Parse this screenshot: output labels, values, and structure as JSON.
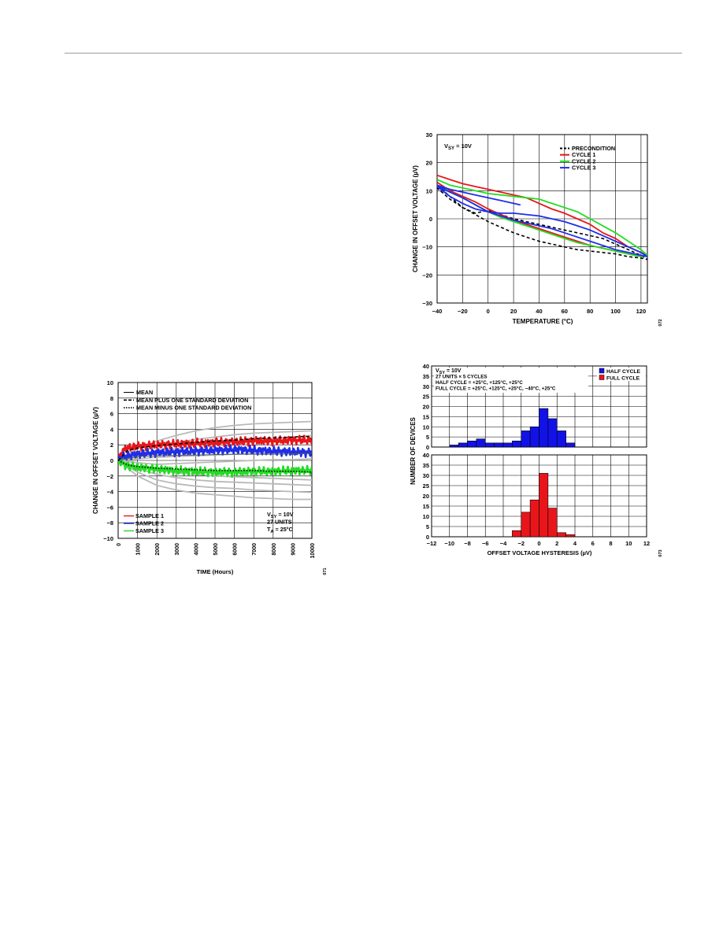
{
  "chart_data": [
    {
      "type": "line",
      "xlabel": "TEMPERATURE (°C)",
      "ylabel": "CHANGE IN OFFSET VOLTAGE (µV)",
      "xlim": [
        -40,
        125
      ],
      "ylim": [
        -30,
        30
      ],
      "xticks": [
        "−40",
        "−20",
        "0",
        "20",
        "40",
        "60",
        "80",
        "100",
        "120"
      ],
      "yticks": [
        "30",
        "20",
        "10",
        "0",
        "−10",
        "−20",
        "−30"
      ],
      "annotation": "V_SY = 10V",
      "figure_id": "072",
      "grid": true,
      "legend_position": "top-right",
      "series": [
        {
          "name": "PRECONDITION",
          "color": "#000000",
          "dash": true,
          "x": [
            -40,
            -30,
            -20,
            -10,
            0,
            10,
            20,
            30,
            40,
            50,
            60,
            70,
            80,
            90,
            100,
            110,
            120,
            125,
            120,
            110,
            100,
            90,
            80,
            70,
            60,
            50,
            40,
            30,
            20,
            10,
            0,
            -10,
            -20,
            -30,
            -40
          ],
          "y": [
            12,
            8,
            4,
            1.5,
            -1,
            -3,
            -5,
            -6.5,
            -8,
            -9,
            -10,
            -11,
            -11.5,
            -12,
            -12.5,
            -13.5,
            -14,
            -14.5,
            -13,
            -11,
            -9,
            -7,
            -6,
            -5,
            -4,
            -3,
            -2,
            -1,
            0,
            1.5,
            3,
            2,
            4,
            7,
            11
          ]
        },
        {
          "name": "CYCLE 1",
          "color": "#e8161b",
          "dash": false,
          "x": [
            -40,
            -30,
            -20,
            -10,
            0,
            10,
            20,
            25,
            30,
            40,
            50,
            60,
            70,
            80,
            90,
            100,
            110,
            120,
            125,
            120,
            110,
            100,
            90,
            80,
            70,
            60,
            50,
            40,
            30,
            20,
            10,
            0,
            -10,
            -20,
            -30,
            -40
          ],
          "y": [
            15.5,
            14,
            12.5,
            11.5,
            10.5,
            9.5,
            8.5,
            8,
            7.5,
            5.5,
            3.5,
            2,
            0,
            -2,
            -5,
            -7,
            -10,
            -12,
            -13,
            -13.5,
            -12.5,
            -11.5,
            -10.5,
            -9.5,
            -8,
            -6.5,
            -5,
            -3.5,
            -2,
            -0.5,
            1.5,
            3.5,
            6,
            8,
            10,
            13
          ]
        },
        {
          "name": "CYCLE 2",
          "color": "#22dd22",
          "dash": false,
          "x": [
            -40,
            -30,
            -20,
            -10,
            0,
            10,
            20,
            30,
            40,
            50,
            60,
            70,
            80,
            90,
            100,
            110,
            120,
            125,
            120,
            110,
            100,
            90,
            80,
            70,
            60,
            50,
            40,
            30,
            20,
            10,
            0,
            -10,
            -20,
            -30,
            -40
          ],
          "y": [
            14,
            12,
            11,
            10,
            9,
            8.5,
            8,
            7.5,
            7,
            5.5,
            4,
            2.5,
            0,
            -2.5,
            -5,
            -8,
            -11,
            -13,
            -13.5,
            -12.5,
            -11.5,
            -10.5,
            -9.5,
            -8.5,
            -7,
            -5.5,
            -4,
            -2.5,
            -1,
            0.5,
            2.5,
            5,
            7.5,
            9.5,
            12
          ]
        },
        {
          "name": "CYCLE 3",
          "color": "#1f2ee8",
          "dash": false,
          "x": [
            -40,
            -30,
            -20,
            -10,
            0,
            10,
            20,
            25,
            20,
            10,
            0,
            -10,
            -20,
            -30,
            -40,
            -30,
            -20,
            -10,
            0,
            10,
            20,
            30,
            40,
            50,
            60,
            70,
            80,
            90,
            100,
            110,
            120,
            125,
            120,
            110,
            100,
            90,
            80,
            70,
            60,
            50,
            40,
            30,
            20,
            10,
            0,
            -10,
            -20,
            -30,
            -40
          ],
          "y": [
            12,
            10.5,
            9.5,
            8.5,
            7.5,
            6.5,
            5.5,
            5,
            5.5,
            6.5,
            7.5,
            8.5,
            9.5,
            10.5,
            11.5,
            9.5,
            7.5,
            5,
            2.5,
            1,
            -0.5,
            -1.5,
            -2.5,
            -3.5,
            -5,
            -6.5,
            -8,
            -9.5,
            -11,
            -12,
            -13,
            -13.5,
            -12,
            -10,
            -8,
            -6,
            -4,
            -2.5,
            -1,
            0,
            1,
            1.5,
            2,
            2,
            2.5,
            3.5,
            5.5,
            8,
            11.5
          ]
        }
      ]
    },
    {
      "type": "line",
      "xlabel": "TIME (Hours)",
      "ylabel": "CHANGE IN OFFSET VOLTAGE (µV)",
      "xlim": [
        0,
        10000
      ],
      "ylim": [
        -10,
        10
      ],
      "xticks": [
        "0",
        "1000",
        "2000",
        "3000",
        "4000",
        "5000",
        "6000",
        "7000",
        "8000",
        "9000",
        "10000"
      ],
      "yticks": [
        "10",
        "8",
        "6",
        "4",
        "2",
        "0",
        "−2",
        "−4",
        "−6",
        "−8",
        "−10"
      ],
      "annotation_lines": [
        "V_SY = 10V",
        "27 UNITS",
        "T_A = 25°C"
      ],
      "figure_id": "071",
      "grid": true,
      "legend_top": [
        "MEAN",
        "MEAN PLUS ONE STANDARD DEVIATION",
        "MEAN MINUS ONE STANDARD DEVIATION"
      ],
      "legend_bottom": [
        "SAMPLE 1",
        "SAMPLE 2",
        "SAMPLE 3"
      ],
      "series": [
        {
          "name": "SAMPLE 1",
          "color": "#e8161b",
          "x": [
            0,
            200,
            500,
            1000,
            2000,
            3000,
            4000,
            5000,
            6000,
            7000,
            8000,
            9000,
            10000
          ],
          "y": [
            0,
            1.2,
            1.6,
            1.8,
            2.0,
            2.1,
            2.2,
            2.3,
            2.4,
            2.5,
            2.5,
            2.6,
            2.6
          ]
        },
        {
          "name": "SAMPLE 2",
          "color": "#1f2ee8",
          "x": [
            0,
            200,
            500,
            1000,
            2000,
            3000,
            4000,
            5000,
            6000,
            7000,
            8000,
            9000,
            10000
          ],
          "y": [
            0,
            0.4,
            0.6,
            0.8,
            1.0,
            1.1,
            1.2,
            1.3,
            1.4,
            1.3,
            1.2,
            1.1,
            1.0
          ]
        },
        {
          "name": "SAMPLE 3",
          "color": "#22dd22",
          "x": [
            0,
            200,
            500,
            1000,
            2000,
            3000,
            4000,
            5000,
            6000,
            7000,
            8000,
            9000,
            10000
          ],
          "y": [
            0,
            -0.4,
            -0.7,
            -0.9,
            -1.1,
            -1.3,
            -1.4,
            -1.5,
            -1.5,
            -1.4,
            -1.4,
            -1.3,
            -1.3
          ]
        },
        {
          "name": "MEAN",
          "color": "#555555",
          "x": [
            0,
            1000,
            2000,
            4000,
            6000,
            8000,
            10000
          ],
          "y": [
            0,
            0.5,
            0.6,
            0.7,
            0.8,
            0.8,
            0.9
          ]
        },
        {
          "name": "MEAN PLUS ONE STANDARD DEVIATION",
          "color": "#000000",
          "x": [
            0,
            500,
            1000,
            2000,
            3000,
            4000,
            5000,
            6000,
            7000,
            8000,
            9000,
            10000
          ],
          "y": [
            0,
            1.3,
            1.6,
            1.9,
            2.1,
            2.3,
            2.5,
            2.6,
            2.8,
            2.9,
            3.0,
            3.1
          ]
        },
        {
          "name": "MEAN MINUS ONE STANDARD DEVIATION",
          "color": "#000000",
          "x": [
            0,
            500,
            1000,
            2000,
            3000,
            4000,
            5000,
            6000,
            7000,
            8000,
            9000,
            10000
          ],
          "y": [
            0,
            -0.6,
            -0.8,
            -1.0,
            -1.1,
            -1.2,
            -1.3,
            -1.3,
            -1.3,
            -1.4,
            -1.4,
            -1.5
          ]
        }
      ],
      "background_traces": [
        [
          0,
          1.5,
          2.5,
          3.2,
          3.8,
          4.2,
          4.5,
          4.7,
          4.8,
          4.9,
          5.0
        ],
        [
          0,
          1.0,
          1.8,
          2.3,
          2.7,
          3.0,
          3.3,
          3.5,
          3.6,
          3.7,
          3.8
        ],
        [
          0,
          0.5,
          1.0,
          1.5,
          2.0,
          2.2,
          2.5,
          2.7,
          2.8,
          3.0,
          3.2
        ],
        [
          0,
          0.2,
          0.4,
          0.5,
          0.6,
          0.7,
          0.8,
          0.9,
          1.0,
          1.1,
          1.2
        ],
        [
          0,
          -0.3,
          -0.5,
          -0.4,
          -0.3,
          -0.2,
          -0.1,
          0,
          0.1,
          0.1,
          0.2
        ],
        [
          0,
          -1.0,
          -1.8,
          -2.2,
          -2.5,
          -2.7,
          -2.8,
          -2.9,
          -3.0,
          -3.1,
          -3.2
        ],
        [
          0,
          -1.5,
          -2.5,
          -3.0,
          -3.3,
          -3.5,
          -3.6,
          -3.8,
          -3.9,
          -4.0,
          -4.1
        ],
        [
          0,
          -2.0,
          -3.2,
          -3.8,
          -4.2,
          -4.4,
          -4.6,
          -4.8,
          -4.9,
          -5.0,
          -5.0
        ],
        [
          0,
          -0.8,
          -1.2,
          -1.6,
          -1.8,
          -2.0,
          -2.1,
          -2.2,
          -2.3,
          -2.4,
          -2.5
        ]
      ]
    },
    {
      "type": "bar",
      "xlabel": "OFFSET VOLTAGE HYSTERESIS (µV)",
      "ylabel": "NUMBER OF DEVICES",
      "xlim": [
        -12,
        12
      ],
      "ylim": [
        0,
        40
      ],
      "xticks": [
        "−12",
        "−10",
        "−8",
        "−6",
        "−4",
        "−2",
        "0",
        "2",
        "4",
        "6",
        "8",
        "10",
        "12"
      ],
      "yticks": [
        "40",
        "35",
        "30",
        "25",
        "20",
        "15",
        "10",
        "5",
        "0"
      ],
      "annotation_lines": [
        "V_SY = 10V",
        "27 UNITS × 5 CYCLES",
        "HALF CYCLE = +25°C, +125°C, +25°C",
        "FULL CYCLE = +25°C, +125°C, +25°C, −40°C, +25°C"
      ],
      "figure_id": "073",
      "grid": true,
      "bin_width": 1,
      "series": [
        {
          "name": "HALF CYCLE",
          "color": "#1212e6",
          "bin_left": [
            -10,
            -9,
            -8,
            -7,
            -6,
            -5,
            -4,
            -3,
            -2,
            -1,
            0,
            1,
            2,
            3
          ],
          "values": [
            1,
            2,
            3,
            4,
            2,
            2,
            2,
            3,
            8,
            10,
            19,
            14,
            8,
            2
          ]
        },
        {
          "name": "FULL CYCLE",
          "color": "#e8161b",
          "bin_left": [
            -3,
            -2,
            -1,
            0,
            1,
            2,
            3
          ],
          "values": [
            3,
            12,
            18,
            31,
            14,
            2,
            1
          ]
        }
      ]
    }
  ]
}
